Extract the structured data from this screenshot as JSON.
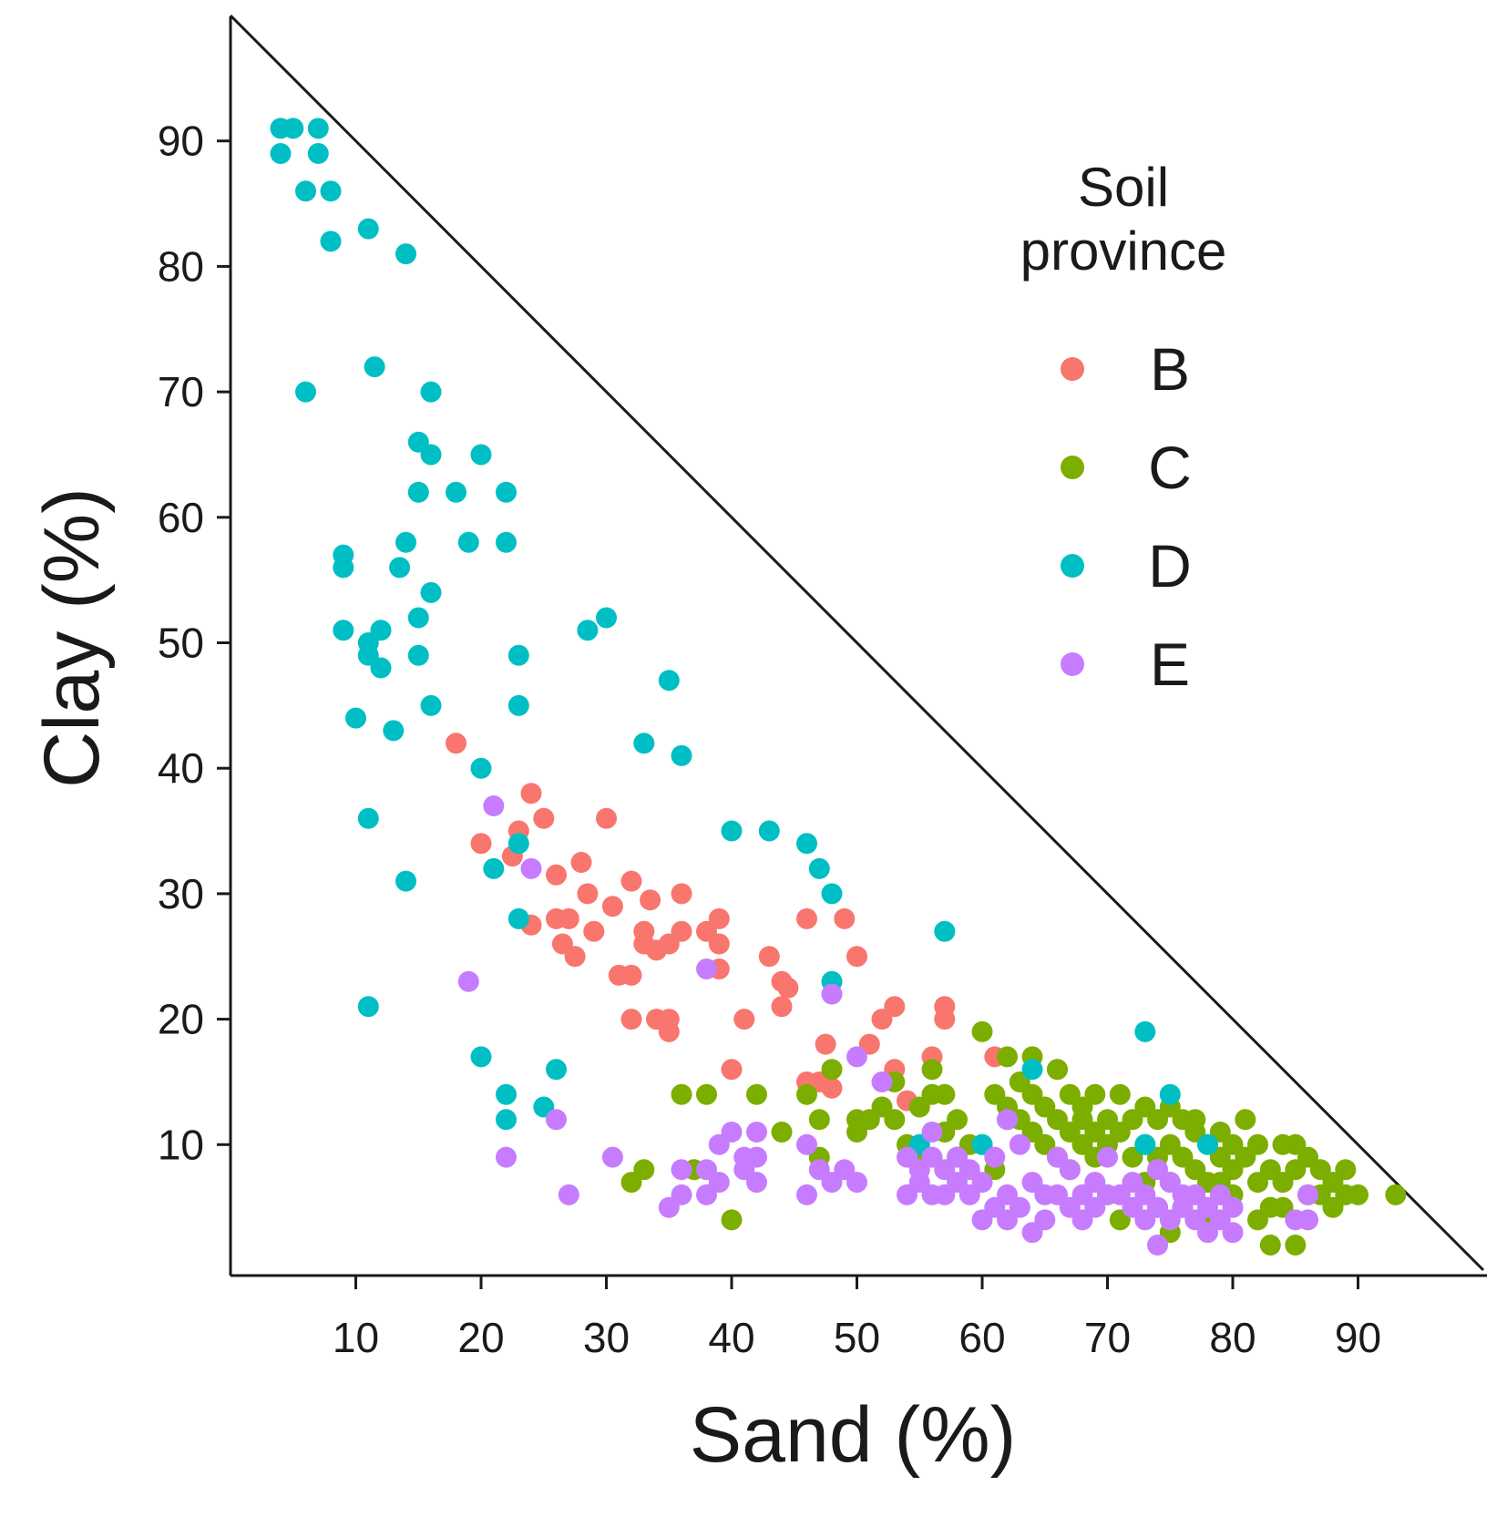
{
  "chart_data": {
    "type": "scatter",
    "xlabel": "Sand (%)",
    "ylabel": "Clay (%)",
    "xlim": [
      0,
      100
    ],
    "ylim": [
      0,
      100
    ],
    "x_ticks": [
      10,
      20,
      30,
      40,
      50,
      60,
      70,
      80,
      90
    ],
    "y_ticks": [
      10,
      20,
      30,
      40,
      50,
      60,
      70,
      80,
      90
    ],
    "grid": false,
    "boundary": "triangle sand + clay = 100",
    "legend": {
      "title": "Soil\nprovince",
      "position": "top-right",
      "entries": [
        "B",
        "C",
        "D",
        "E"
      ]
    },
    "series": [
      {
        "name": "B",
        "color": "#f8766d",
        "points": [
          [
            18,
            42
          ],
          [
            20,
            34
          ],
          [
            22.5,
            33
          ],
          [
            23,
            35
          ],
          [
            24,
            38
          ],
          [
            24,
            27.5
          ],
          [
            25,
            36
          ],
          [
            26,
            28
          ],
          [
            26,
            31.5
          ],
          [
            26.5,
            26
          ],
          [
            27,
            28
          ],
          [
            27.5,
            25
          ],
          [
            28,
            32.5
          ],
          [
            28.5,
            30
          ],
          [
            29,
            27
          ],
          [
            30,
            36
          ],
          [
            30.5,
            29
          ],
          [
            31,
            23.5
          ],
          [
            32,
            23.5
          ],
          [
            32,
            20
          ],
          [
            32,
            31
          ],
          [
            33,
            27
          ],
          [
            33,
            26
          ],
          [
            33.5,
            29.5
          ],
          [
            34,
            25.5
          ],
          [
            34,
            20
          ],
          [
            35,
            20
          ],
          [
            35,
            26
          ],
          [
            35,
            19
          ],
          [
            36,
            27
          ],
          [
            36,
            30
          ],
          [
            38,
            27
          ],
          [
            39,
            28
          ],
          [
            39,
            26
          ],
          [
            39,
            24
          ],
          [
            40,
            16
          ],
          [
            41,
            20
          ],
          [
            43,
            25
          ],
          [
            44,
            23
          ],
          [
            44,
            21
          ],
          [
            44.5,
            22.5
          ],
          [
            46,
            28
          ],
          [
            46,
            15
          ],
          [
            47,
            15
          ],
          [
            47.5,
            18
          ],
          [
            48,
            14.5
          ],
          [
            49,
            28
          ],
          [
            50,
            25
          ],
          [
            51,
            18
          ],
          [
            52,
            20
          ],
          [
            53,
            21
          ],
          [
            53,
            16
          ],
          [
            54,
            13.5
          ],
          [
            56,
            17
          ],
          [
            57,
            21
          ],
          [
            57,
            20
          ],
          [
            61,
            17
          ],
          [
            66,
            16
          ]
        ]
      },
      {
        "name": "C",
        "color": "#7cae00",
        "points": [
          [
            32,
            7
          ],
          [
            33,
            8
          ],
          [
            36,
            14
          ],
          [
            37,
            8
          ],
          [
            38,
            14
          ],
          [
            40,
            4
          ],
          [
            42,
            14
          ],
          [
            44,
            11
          ],
          [
            46,
            14
          ],
          [
            47,
            12
          ],
          [
            47,
            9
          ],
          [
            48,
            16
          ],
          [
            50,
            12
          ],
          [
            50,
            11
          ],
          [
            51,
            12
          ],
          [
            52,
            13
          ],
          [
            53,
            12
          ],
          [
            53,
            15
          ],
          [
            54,
            10
          ],
          [
            55,
            13
          ],
          [
            55,
            9
          ],
          [
            56,
            16
          ],
          [
            56,
            14
          ],
          [
            57,
            14
          ],
          [
            57,
            11
          ],
          [
            58,
            9
          ],
          [
            58,
            12
          ],
          [
            59,
            10
          ],
          [
            60,
            19
          ],
          [
            60,
            10
          ],
          [
            61,
            14
          ],
          [
            61,
            8
          ],
          [
            62,
            17
          ],
          [
            62,
            13
          ],
          [
            63,
            12
          ],
          [
            63,
            15
          ],
          [
            64,
            17
          ],
          [
            64,
            11
          ],
          [
            64,
            14
          ],
          [
            65,
            13
          ],
          [
            65,
            10
          ],
          [
            66,
            16
          ],
          [
            66,
            12
          ],
          [
            66,
            9
          ],
          [
            67,
            14
          ],
          [
            67,
            11
          ],
          [
            67,
            8
          ],
          [
            68,
            12
          ],
          [
            68,
            10
          ],
          [
            68,
            13
          ],
          [
            69,
            11
          ],
          [
            69,
            9
          ],
          [
            69,
            14
          ],
          [
            70,
            12
          ],
          [
            70,
            10
          ],
          [
            70,
            6
          ],
          [
            71,
            14
          ],
          [
            71,
            11
          ],
          [
            71,
            4
          ],
          [
            72,
            12
          ],
          [
            72,
            9
          ],
          [
            73,
            13
          ],
          [
            73,
            10
          ],
          [
            73,
            7
          ],
          [
            74,
            12
          ],
          [
            74,
            9
          ],
          [
            74,
            5
          ],
          [
            75,
            13
          ],
          [
            75,
            10
          ],
          [
            75,
            7
          ],
          [
            75,
            3
          ],
          [
            76,
            12
          ],
          [
            76,
            9
          ],
          [
            76,
            5
          ],
          [
            77,
            11
          ],
          [
            77,
            8
          ],
          [
            77,
            12
          ],
          [
            78,
            10
          ],
          [
            78,
            7
          ],
          [
            78,
            4
          ],
          [
            79,
            11
          ],
          [
            79,
            9
          ],
          [
            79,
            7
          ],
          [
            80,
            10
          ],
          [
            80,
            8
          ],
          [
            80,
            6
          ],
          [
            81,
            12
          ],
          [
            81,
            9
          ],
          [
            82,
            10
          ],
          [
            82,
            7
          ],
          [
            82,
            4
          ],
          [
            83,
            8
          ],
          [
            83,
            5
          ],
          [
            83,
            2
          ],
          [
            84,
            10
          ],
          [
            84,
            7
          ],
          [
            84,
            5
          ],
          [
            85,
            10
          ],
          [
            85,
            8
          ],
          [
            85,
            2
          ],
          [
            86,
            9
          ],
          [
            86,
            6
          ],
          [
            87,
            8
          ],
          [
            87,
            6
          ],
          [
            88,
            7
          ],
          [
            88,
            5
          ],
          [
            89,
            8
          ],
          [
            89,
            6
          ],
          [
            90,
            6
          ],
          [
            93,
            6
          ]
        ]
      },
      {
        "name": "D",
        "color": "#00bfc4",
        "points": [
          [
            4,
            91
          ],
          [
            4,
            89
          ],
          [
            5,
            91
          ],
          [
            6,
            86
          ],
          [
            6,
            70
          ],
          [
            7,
            91
          ],
          [
            7,
            89
          ],
          [
            8,
            86
          ],
          [
            8,
            82
          ],
          [
            9,
            57
          ],
          [
            9,
            56
          ],
          [
            9,
            51
          ],
          [
            10,
            44
          ],
          [
            11,
            83
          ],
          [
            11,
            50
          ],
          [
            11,
            49
          ],
          [
            11,
            36
          ],
          [
            11,
            21
          ],
          [
            11.5,
            72
          ],
          [
            12,
            51
          ],
          [
            12,
            48
          ],
          [
            13,
            43
          ],
          [
            13.5,
            56
          ],
          [
            14,
            81
          ],
          [
            14,
            58
          ],
          [
            14,
            31
          ],
          [
            15,
            66
          ],
          [
            15,
            62
          ],
          [
            15,
            52
          ],
          [
            15,
            49
          ],
          [
            16,
            70
          ],
          [
            16,
            65
          ],
          [
            16,
            54
          ],
          [
            16,
            45
          ],
          [
            18,
            62
          ],
          [
            19,
            58
          ],
          [
            20,
            65
          ],
          [
            20,
            40
          ],
          [
            20,
            17
          ],
          [
            21,
            32
          ],
          [
            22,
            62
          ],
          [
            22,
            58
          ],
          [
            22,
            14
          ],
          [
            22,
            12
          ],
          [
            23,
            49
          ],
          [
            23,
            45
          ],
          [
            23,
            34
          ],
          [
            23,
            28
          ],
          [
            25,
            13
          ],
          [
            26,
            16
          ],
          [
            28.5,
            51
          ],
          [
            30,
            52
          ],
          [
            33,
            42
          ],
          [
            35,
            47
          ],
          [
            36,
            41
          ],
          [
            40,
            35
          ],
          [
            43,
            35
          ],
          [
            46,
            34
          ],
          [
            47,
            32
          ],
          [
            48,
            30
          ],
          [
            48,
            23
          ],
          [
            55,
            10
          ],
          [
            57,
            27
          ],
          [
            60,
            10
          ],
          [
            62,
            12
          ],
          [
            64,
            16
          ],
          [
            73,
            19
          ],
          [
            73,
            10
          ],
          [
            75,
            14
          ],
          [
            78,
            10
          ]
        ]
      },
      {
        "name": "E",
        "color": "#c77cff",
        "points": [
          [
            19,
            23
          ],
          [
            21,
            37
          ],
          [
            22,
            9
          ],
          [
            24,
            32
          ],
          [
            26,
            12
          ],
          [
            27,
            6
          ],
          [
            30.5,
            9
          ],
          [
            35,
            5
          ],
          [
            36,
            6
          ],
          [
            36,
            8
          ],
          [
            38,
            6
          ],
          [
            38,
            8
          ],
          [
            38,
            24
          ],
          [
            39,
            7
          ],
          [
            39,
            10
          ],
          [
            40,
            11
          ],
          [
            41,
            9
          ],
          [
            41,
            8
          ],
          [
            42,
            11
          ],
          [
            42,
            7
          ],
          [
            42,
            9
          ],
          [
            46,
            6
          ],
          [
            46,
            10
          ],
          [
            47,
            8
          ],
          [
            48,
            22
          ],
          [
            48,
            7
          ],
          [
            49,
            8
          ],
          [
            50,
            7
          ],
          [
            50,
            17
          ],
          [
            52,
            15
          ],
          [
            54,
            9
          ],
          [
            54,
            6
          ],
          [
            55,
            7
          ],
          [
            55,
            8
          ],
          [
            56,
            11
          ],
          [
            56,
            6
          ],
          [
            56,
            9
          ],
          [
            57,
            8
          ],
          [
            57,
            6
          ],
          [
            58,
            7
          ],
          [
            58,
            9
          ],
          [
            59,
            6
          ],
          [
            59,
            8
          ],
          [
            60,
            4
          ],
          [
            60,
            7
          ],
          [
            61,
            5
          ],
          [
            61,
            9
          ],
          [
            62,
            12
          ],
          [
            62,
            6
          ],
          [
            62,
            4
          ],
          [
            63,
            10
          ],
          [
            63,
            5
          ],
          [
            64,
            7
          ],
          [
            64,
            3
          ],
          [
            65,
            6
          ],
          [
            65,
            4
          ],
          [
            66,
            9
          ],
          [
            66,
            6
          ],
          [
            67,
            5
          ],
          [
            67,
            8
          ],
          [
            68,
            6
          ],
          [
            68,
            4
          ],
          [
            69,
            7
          ],
          [
            69,
            5
          ],
          [
            70,
            6
          ],
          [
            70,
            9
          ],
          [
            71,
            6
          ],
          [
            72,
            5
          ],
          [
            72,
            7
          ],
          [
            73,
            6
          ],
          [
            73,
            4
          ],
          [
            74,
            8
          ],
          [
            74,
            5
          ],
          [
            74,
            2
          ],
          [
            75,
            7
          ],
          [
            75,
            4
          ],
          [
            76,
            5
          ],
          [
            76,
            6
          ],
          [
            77,
            4
          ],
          [
            77,
            6
          ],
          [
            78,
            5
          ],
          [
            78,
            3
          ],
          [
            79,
            6
          ],
          [
            79,
            4
          ],
          [
            80,
            5
          ],
          [
            80,
            3
          ],
          [
            85,
            4
          ],
          [
            86,
            6
          ],
          [
            86,
            4
          ]
        ]
      }
    ]
  }
}
